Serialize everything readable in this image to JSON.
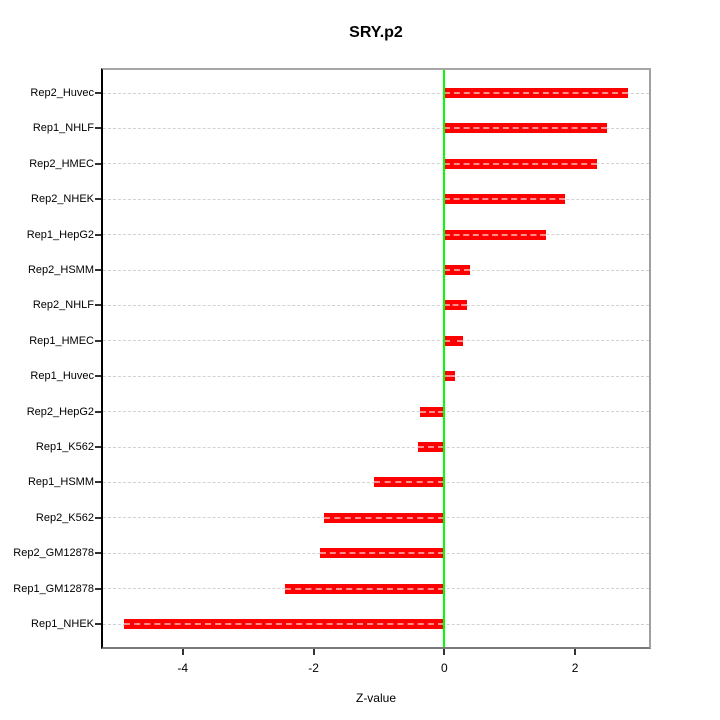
{
  "chart_data": {
    "type": "bar",
    "orientation": "horizontal",
    "title": "SRY.p2",
    "xlabel": "Z-value",
    "ylabel": "",
    "categories": [
      "Rep2_Huvec",
      "Rep1_NHLF",
      "Rep2_HMEC",
      "Rep2_NHEK",
      "Rep1_HepG2",
      "Rep2_HSMM",
      "Rep2_NHLF",
      "Rep1_HMEC",
      "Rep1_Huvec",
      "Rep2_HepG2",
      "Rep1_K562",
      "Rep1_HSMM",
      "Rep2_K562",
      "Rep2_GM12878",
      "Rep1_GM12878",
      "Rep1_NHEK"
    ],
    "values": [
      2.81,
      2.49,
      2.34,
      1.84,
      1.55,
      0.39,
      0.35,
      0.29,
      0.16,
      -0.37,
      -0.41,
      -1.08,
      -1.84,
      -1.9,
      -2.43,
      -4.9
    ],
    "xlim": [
      -5.22,
      3.13
    ],
    "xticks": [
      -4,
      -2,
      0,
      2
    ],
    "zero_reference_line": 0,
    "grid": true,
    "legend": null,
    "colors": {
      "bar": "#ff0000",
      "zero_line": "#00ff00",
      "gridline": "#d2d2d2",
      "box": "#a0a0a0",
      "axis_left": "#000000",
      "tick": "#333333",
      "text": "#000000"
    }
  }
}
